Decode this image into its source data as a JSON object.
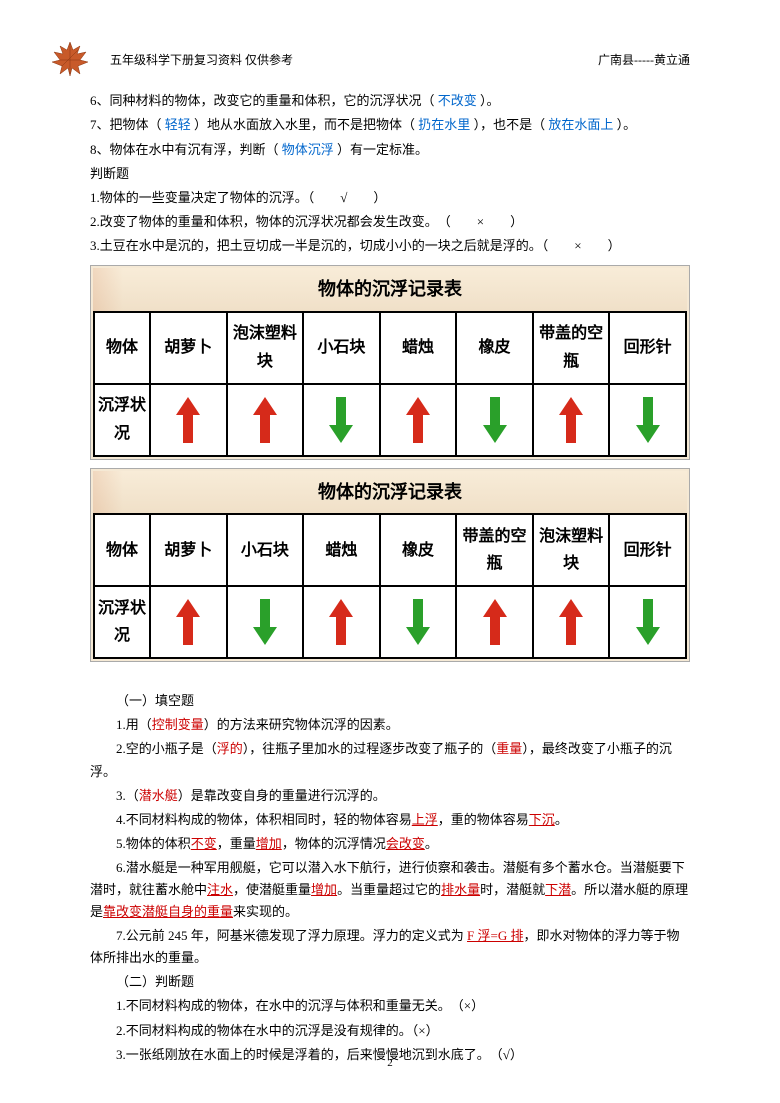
{
  "header": {
    "left": "五年级科学下册复习资料 仅供参考",
    "right": "广南县-----黄立通"
  },
  "fill": {
    "q6_a": "6、同种材料的物体，改变它的重量和体积，它的沉浮状况（ ",
    "q6_ans": "不改变",
    "q6_b": " ）。",
    "q7_a": "7、把物体（ ",
    "q7_ans1": "轻轻",
    "q7_b": " ）地从水面放入水里，而不是把物体（ ",
    "q7_ans2": "扔在水里",
    "q7_c": " ），也不是（ ",
    "q7_ans3": "放在水面上",
    "q7_d": " ）。",
    "q8_a": "8、物体在水中有沉有浮，判断（ ",
    "q8_ans": "物体沉浮",
    "q8_b": " ）有一定标准。"
  },
  "judge1": {
    "title": "判断题",
    "q1": "1.物体的一些变量决定了物体的沉浮。（　　√　　）",
    "q2": "2.改变了物体的重量和体积，物体的沉浮状况都会发生改变。　（　　×　　）",
    "q3": "3.土豆在水中是沉的，把土豆切成一半是沉的，切成小小的一块之后就是浮的。（　　×　　）"
  },
  "table1": {
    "title": "物体的沉浮记录表",
    "row_label_obj": "物体",
    "row_label_state": "沉浮状况",
    "cols": [
      "胡萝卜",
      "泡沫塑料块",
      "小石块",
      "蜡烛",
      "橡皮",
      "带盖的空瓶",
      "回形针"
    ],
    "arrows": [
      "up-red",
      "up-red",
      "down-green",
      "up-red",
      "down-green",
      "up-red",
      "down-green"
    ]
  },
  "table2": {
    "title": "物体的沉浮记录表",
    "row_label_obj": "物体",
    "row_label_state": "沉浮状况",
    "cols": [
      "胡萝卜",
      "小石块",
      "蜡烛",
      "橡皮",
      "带盖的空瓶",
      "泡沫塑料块",
      "回形针"
    ],
    "arrows": [
      "up-red",
      "down-green",
      "up-red",
      "down-green",
      "up-red",
      "up-red",
      "down-green"
    ]
  },
  "fill2": {
    "title": "（一）填空题",
    "q1_a": "1.用（",
    "q1_ans": "控制变量",
    "q1_b": "）的方法来研究物体沉浮的因素。",
    "q2_a": "2.空的小瓶子是（",
    "q2_ans1": "浮的",
    "q2_b": "），往瓶子里加水的过程逐步改变了瓶子的（",
    "q2_ans2": "重量",
    "q2_c": "），最终改变了小瓶子的沉浮。",
    "q3_a": "3.（",
    "q3_ans": "潜水艇",
    "q3_b": "）是靠改变自身的重量进行沉浮的。",
    "q4_a": "4.不同材料构成的物体，体积相同时，轻的物体容易",
    "q4_ans1": "上浮",
    "q4_b": "，重的物体容易",
    "q4_ans2": "下沉",
    "q4_c": "。",
    "q5_a": "5.物体的体积",
    "q5_ans1": "不变",
    "q5_b": "，重量",
    "q5_ans2": "增加",
    "q5_c": "，物体的沉浮情况",
    "q5_ans3": "会改变",
    "q5_d": "。",
    "q6_a": "6.潜水艇是一种军用舰艇，它可以潜入水下航行，进行侦察和袭击。潜艇有多个蓄水仓。当潜艇要下潜时，就往蓄水舱中",
    "q6_ans1": "注水",
    "q6_b": "，使潜艇重量",
    "q6_ans2": "增加",
    "q6_c": "。当重量超过它的",
    "q6_ans3": "排水量",
    "q6_d": "时，潜艇就",
    "q6_ans4": "下潜",
    "q6_e": "。所以潜水艇的原理是",
    "q6_ans5": "靠改变潜艇自身的重量",
    "q6_f": "来实现的。",
    "q7_a": "7.公元前 245 年，阿基米德发现了浮力原理。浮力的定义式为 ",
    "q7_ans": "F 浮=G 排",
    "q7_b": "，即水对物体的浮力等于物体所排出水的重量。"
  },
  "judge2": {
    "title": "（二）判断题",
    "q1": "1.不同材料构成的物体，在水中的沉浮与体积和重量无关。　（×）",
    "q2": "2.不同材料构成的物体在水中的沉浮是没有规律的。（×）",
    "q3": "3.一张纸刚放在水面上的时候是浮着的，后来慢慢地沉到水底了。　（√）"
  },
  "arrow_colors": {
    "up": "#d62a1a",
    "down": "#2aa02a"
  },
  "page_number": "2"
}
